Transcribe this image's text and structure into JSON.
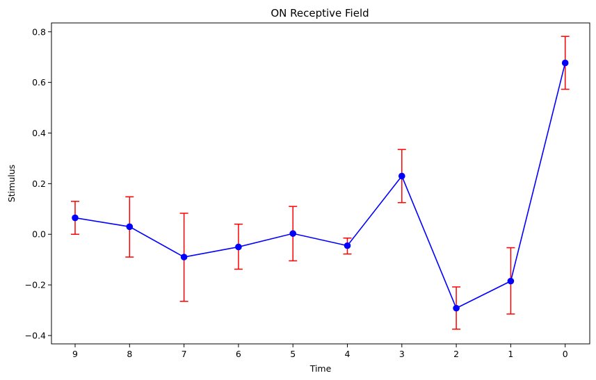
{
  "chart_data": {
    "type": "line",
    "title": "ON Receptive Field",
    "xlabel": "Time",
    "ylabel": "Stimulus",
    "categories": [
      "9",
      "8",
      "7",
      "6",
      "5",
      "4",
      "3",
      "2",
      "1",
      "0"
    ],
    "series": [
      {
        "values": [
          0.065,
          0.03,
          -0.09,
          -0.05,
          0.003,
          -0.045,
          0.23,
          -0.292,
          -0.185,
          0.677
        ],
        "error_low": [
          0.0,
          -0.09,
          -0.265,
          -0.138,
          -0.105,
          -0.078,
          0.125,
          -0.375,
          -0.315,
          0.573
        ],
        "error_high": [
          0.13,
          0.148,
          0.083,
          0.04,
          0.11,
          -0.015,
          0.335,
          -0.208,
          -0.053,
          0.782
        ]
      }
    ],
    "yticks": [
      "0.8",
      "0.6",
      "0.4",
      "0.2",
      "0.0",
      "−0.2",
      "−0.4"
    ],
    "ytick_values": [
      0.8,
      0.6,
      0.4,
      0.2,
      0.0,
      -0.2,
      -0.4
    ],
    "ylim": [
      -0.433,
      0.835
    ],
    "grid": false,
    "legend": "none",
    "colors": {
      "line": "#0000ff",
      "marker": "#0000ff",
      "errorbar": "#ff0000",
      "axes": "#000000"
    }
  }
}
